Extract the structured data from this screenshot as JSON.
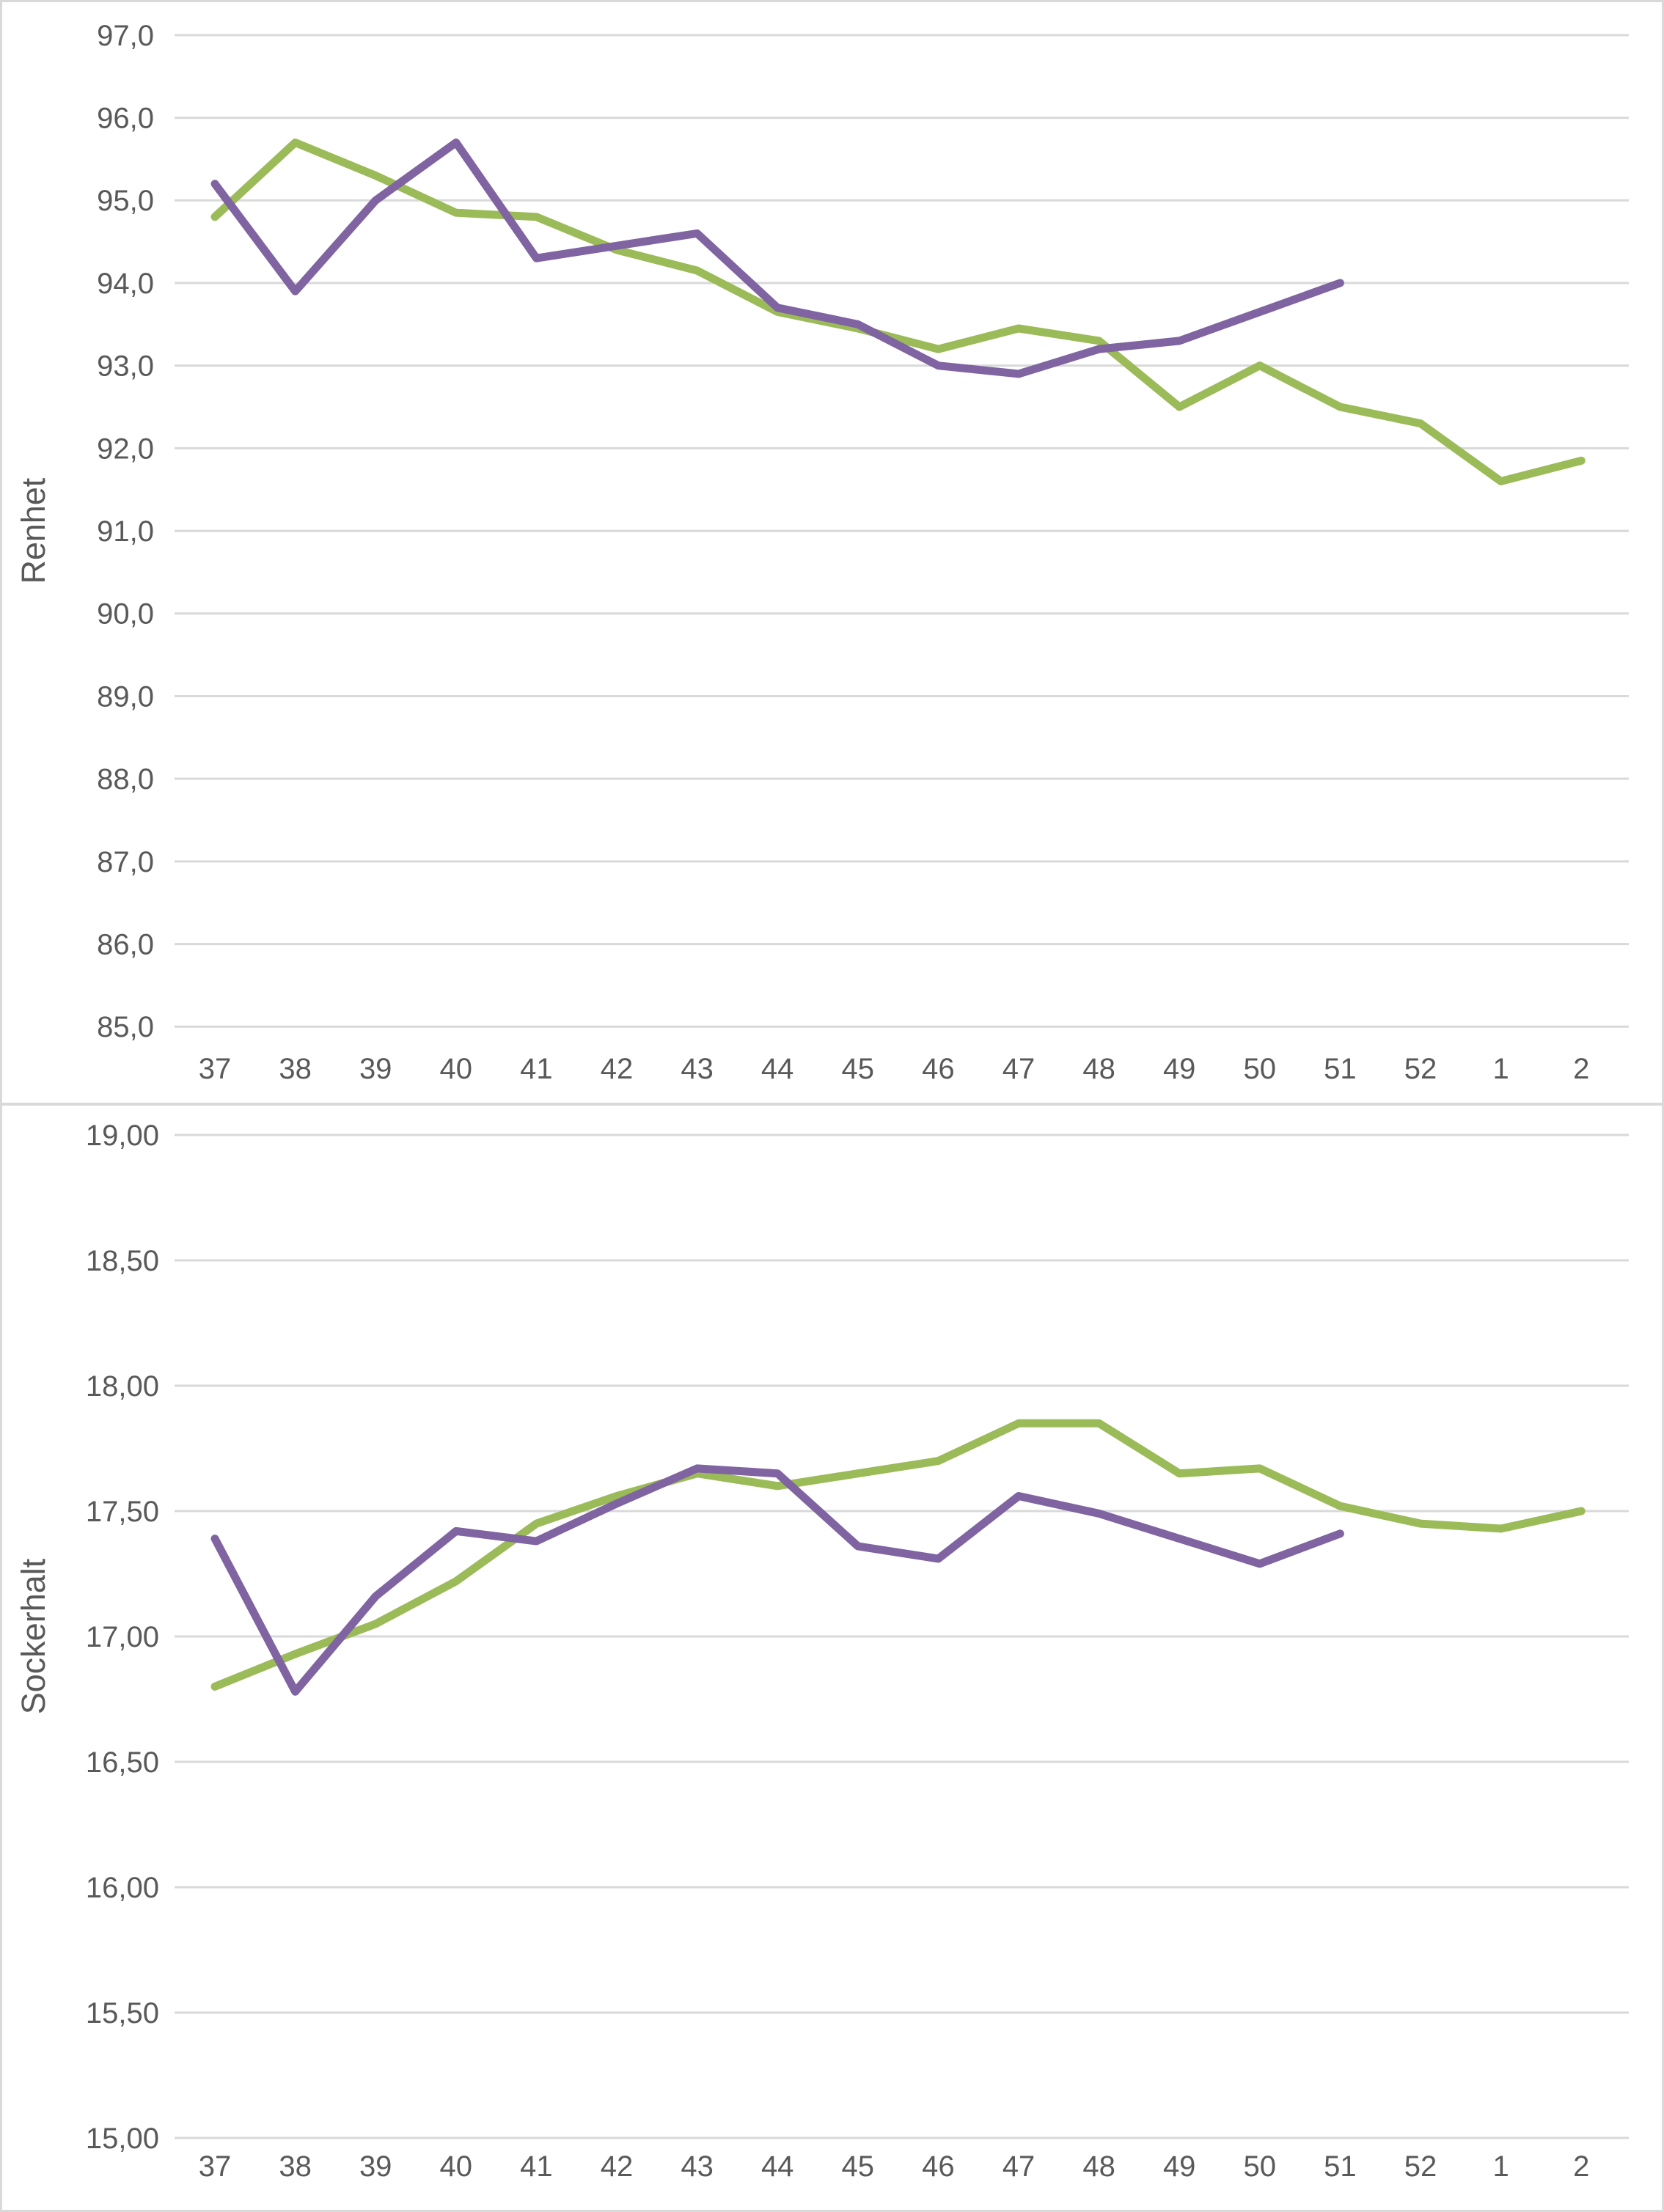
{
  "colors": {
    "background": "#ffffff",
    "frame_border": "#d9d9d9",
    "panel_divider": "#d9d9d9",
    "gridline": "#d9d9d9",
    "tick_label": "#595959",
    "axis_title": "#595959",
    "series_green": "#9BBB59",
    "series_purple": "#8064A2"
  },
  "chart_data": [
    {
      "type": "line",
      "title": "",
      "xlabel": "",
      "ylabel": "Renhet",
      "categories": [
        "37",
        "38",
        "39",
        "40",
        "41",
        "42",
        "43",
        "44",
        "45",
        "46",
        "47",
        "48",
        "49",
        "50",
        "51",
        "52",
        "1",
        "2"
      ],
      "ylim": [
        85.0,
        97.0
      ],
      "y_tick_step": 1.0,
      "y_tick_labels": [
        "97,0",
        "96,0",
        "95,0",
        "94,0",
        "93,0",
        "92,0",
        "91,0",
        "90,0",
        "89,0",
        "88,0",
        "87,0",
        "86,0",
        "85,0"
      ],
      "grid": true,
      "legend_position": "none",
      "series": [
        {
          "name": "green-series",
          "color": "#9BBB59",
          "values": [
            94.8,
            95.7,
            95.3,
            94.85,
            94.8,
            94.4,
            94.15,
            93.65,
            93.45,
            93.2,
            93.45,
            93.3,
            92.5,
            93.0,
            92.5,
            92.3,
            91.6,
            91.85
          ]
        },
        {
          "name": "purple-series",
          "color": "#8064A2",
          "values": [
            95.2,
            93.9,
            95.0,
            95.7,
            94.3,
            94.45,
            94.6,
            93.7,
            93.5,
            93.0,
            92.9,
            93.2,
            93.3,
            93.65,
            94.0,
            null,
            null,
            null
          ]
        }
      ]
    },
    {
      "type": "line",
      "title": "",
      "xlabel": "",
      "ylabel": "Sockerhalt",
      "categories": [
        "37",
        "38",
        "39",
        "40",
        "41",
        "42",
        "43",
        "44",
        "45",
        "46",
        "47",
        "48",
        "49",
        "50",
        "51",
        "52",
        "1",
        "2"
      ],
      "ylim": [
        15.0,
        19.0
      ],
      "y_tick_step": 0.5,
      "y_tick_labels": [
        "19,00",
        "18,50",
        "18,00",
        "17,50",
        "17,00",
        "16,50",
        "16,00",
        "15,50",
        "15,00"
      ],
      "grid": true,
      "legend_position": "none",
      "series": [
        {
          "name": "green-series",
          "color": "#9BBB59",
          "values": [
            16.8,
            16.93,
            17.05,
            17.22,
            17.45,
            17.56,
            17.65,
            17.6,
            17.65,
            17.7,
            17.85,
            17.85,
            17.65,
            17.67,
            17.52,
            17.45,
            17.43,
            17.5
          ]
        },
        {
          "name": "purple-series",
          "color": "#8064A2",
          "values": [
            17.39,
            16.78,
            17.16,
            17.42,
            17.38,
            17.53,
            17.67,
            17.65,
            17.36,
            17.31,
            17.56,
            17.49,
            17.39,
            17.29,
            17.41,
            null,
            null,
            null
          ]
        }
      ]
    }
  ]
}
